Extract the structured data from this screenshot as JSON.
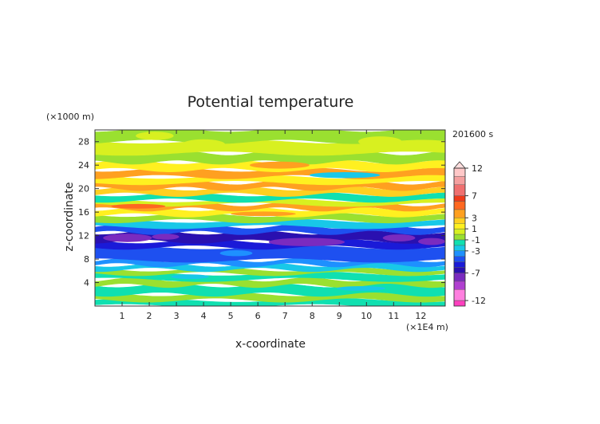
{
  "chart_data": {
    "type": "heatmap",
    "title": "Potential temperature",
    "xlabel": "x-coordinate",
    "ylabel": "z-coordinate",
    "x_unit": "(×1E4 m)",
    "y_unit": "(×1000 m)",
    "time_label": "201600 s",
    "xlim": [
      0,
      12.9
    ],
    "ylim": [
      0,
      30
    ],
    "x_ticks": [
      1,
      2,
      3,
      4,
      5,
      6,
      7,
      8,
      9,
      10,
      11,
      12
    ],
    "y_ticks": [
      4,
      8,
      12,
      16,
      20,
      24,
      28
    ],
    "colorbar": {
      "levels": [
        -13,
        -12,
        -10,
        -8.5,
        -7,
        -6,
        -5,
        -4,
        -3,
        -2,
        -1,
        0,
        1,
        2,
        3,
        4.5,
        6,
        7,
        9,
        10.5,
        12
      ],
      "colors": [
        "#ff3fbf",
        "#ff7fdf",
        "#b040d0",
        "#7a2bbf",
        "#2a10b0",
        "#1a1ad8",
        "#1e50f0",
        "#1e90ff",
        "#18c8e8",
        "#10e0b0",
        "#9ae030",
        "#d8f020",
        "#fff020",
        "#ffd020",
        "#ffa020",
        "#ff6820",
        "#f03a1a",
        "#f07070",
        "#f5a0a0",
        "#ffc8c8"
      ],
      "tick_labels": [
        "-12",
        "-7",
        "-3",
        "-1",
        "1",
        "3",
        "7",
        "12"
      ],
      "extend": "max"
    },
    "field_bands_z": [
      {
        "z": [
          0.0,
          1.0
        ],
        "value": -1.5
      },
      {
        "z": [
          1.0,
          2.0
        ],
        "value": -0.5
      },
      {
        "z": [
          2.0,
          3.5
        ],
        "value": -1.3
      },
      {
        "z": [
          3.5,
          4.5
        ],
        "value": -0.5
      },
      {
        "z": [
          4.5,
          5.5
        ],
        "value": -1.4
      },
      {
        "z": [
          5.5,
          6.2
        ],
        "value": -0.6
      },
      {
        "z": [
          6.2,
          7.0
        ],
        "value": -2.4
      },
      {
        "z": [
          7.0,
          7.8
        ],
        "value": -3.5
      },
      {
        "z": [
          7.8,
          10.0
        ],
        "value": -4.5
      },
      {
        "z": [
          10.0,
          11.0
        ],
        "value": -5.5
      },
      {
        "z": [
          11.0,
          12.5
        ],
        "value": -6.2
      },
      {
        "z": [
          12.5,
          13.5
        ],
        "value": -4.2
      },
      {
        "z": [
          13.5,
          14.5
        ],
        "value": -2.5
      },
      {
        "z": [
          14.5,
          15.5
        ],
        "value": -0.5
      },
      {
        "z": [
          15.5,
          16.5
        ],
        "value": 1.5
      },
      {
        "z": [
          16.5,
          17.3
        ],
        "value": 3.5
      },
      {
        "z": [
          17.3,
          18.0
        ],
        "value": 0.5
      },
      {
        "z": [
          18.0,
          19.0
        ],
        "value": -1.5
      },
      {
        "z": [
          19.0,
          20.0
        ],
        "value": 2.5
      },
      {
        "z": [
          20.0,
          21.0
        ],
        "value": 4.0
      },
      {
        "z": [
          21.0,
          22.0
        ],
        "value": 1.5
      },
      {
        "z": [
          22.0,
          23.2
        ],
        "value": 3.5
      },
      {
        "z": [
          23.2,
          24.5
        ],
        "value": 1.5
      },
      {
        "z": [
          24.5,
          26.0
        ],
        "value": -0.5
      },
      {
        "z": [
          26.0,
          28.0
        ],
        "value": 0.3
      },
      {
        "z": [
          28.0,
          30.0
        ],
        "value": -0.3
      }
    ]
  }
}
